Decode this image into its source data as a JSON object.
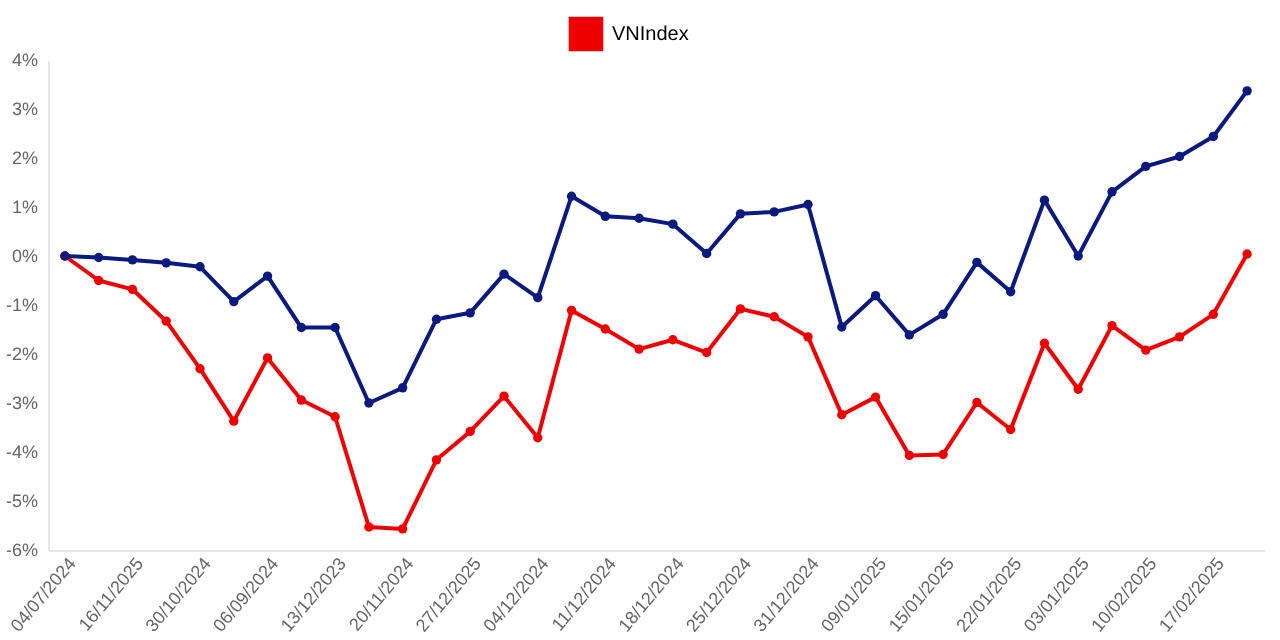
{
  "chart_data": {
    "type": "line",
    "categories": [
      "04/07/2024",
      null,
      "16/11/2025",
      null,
      "30/10/2024",
      null,
      "06/09/2024",
      null,
      "13/12/2023",
      null,
      "20/11/2024",
      null,
      "27/12/2025",
      null,
      "04/12/2024",
      null,
      "11/12/2024",
      null,
      "18/12/2024",
      null,
      "25/12/2024",
      null,
      "31/12/2024",
      null,
      "09/01/2025",
      null,
      "15/01/2025",
      null,
      "22/01/2025",
      null,
      "03/01/2025",
      null,
      "10/02/2025",
      null,
      "17/02/2025",
      null
    ],
    "series": [
      {
        "name": "VNIndex",
        "color": "#ee0000",
        "values": [
          0,
          -0.5,
          -0.68,
          -1.33,
          -2.3,
          -3.37,
          -2.08,
          -2.94,
          -3.28,
          -5.53,
          -5.57,
          -4.16,
          -3.58,
          -2.86,
          -3.71,
          -1.11,
          -1.49,
          -1.9,
          -1.71,
          -1.97,
          -1.08,
          -1.24,
          -1.65,
          -3.24,
          -2.88,
          -4.07,
          -4.05,
          -2.99,
          -3.54,
          -1.78,
          -2.72,
          -1.42,
          -1.92,
          -1.65,
          -1.19,
          0.04
        ]
      },
      {
        "color": "#0a1a7e",
        "values": [
          0,
          -0.03,
          -0.08,
          -0.14,
          -0.22,
          -0.93,
          -0.41,
          -1.46,
          -1.46,
          -3.0,
          -2.69,
          -1.29,
          -1.16,
          -0.37,
          -0.85,
          1.22,
          0.81,
          0.77,
          0.65,
          0.05,
          0.86,
          0.9,
          1.05,
          -1.45,
          -0.81,
          -1.61,
          -1.19,
          -0.13,
          -0.73,
          1.14,
          0,
          1.31,
          1.83,
          2.03,
          2.44,
          3.37
        ]
      }
    ],
    "ylim": [
      -6,
      4
    ],
    "yticks": [
      {
        "value": -6,
        "label": "-6%"
      },
      {
        "value": -5,
        "label": "-5%"
      },
      {
        "value": -4,
        "label": "-4%"
      },
      {
        "value": -3,
        "label": "-3%"
      },
      {
        "value": -2,
        "label": "-2%"
      },
      {
        "value": -1,
        "label": "-1%"
      },
      {
        "value": 0,
        "label": "0%"
      },
      {
        "value": 1,
        "label": "1%"
      },
      {
        "value": 2,
        "label": "2%"
      },
      {
        "value": 3,
        "label": "3%"
      },
      {
        "value": 4,
        "label": "4%"
      }
    ],
    "grid": false,
    "legend": "top",
    "marker": "circle",
    "line_style": "solid"
  }
}
